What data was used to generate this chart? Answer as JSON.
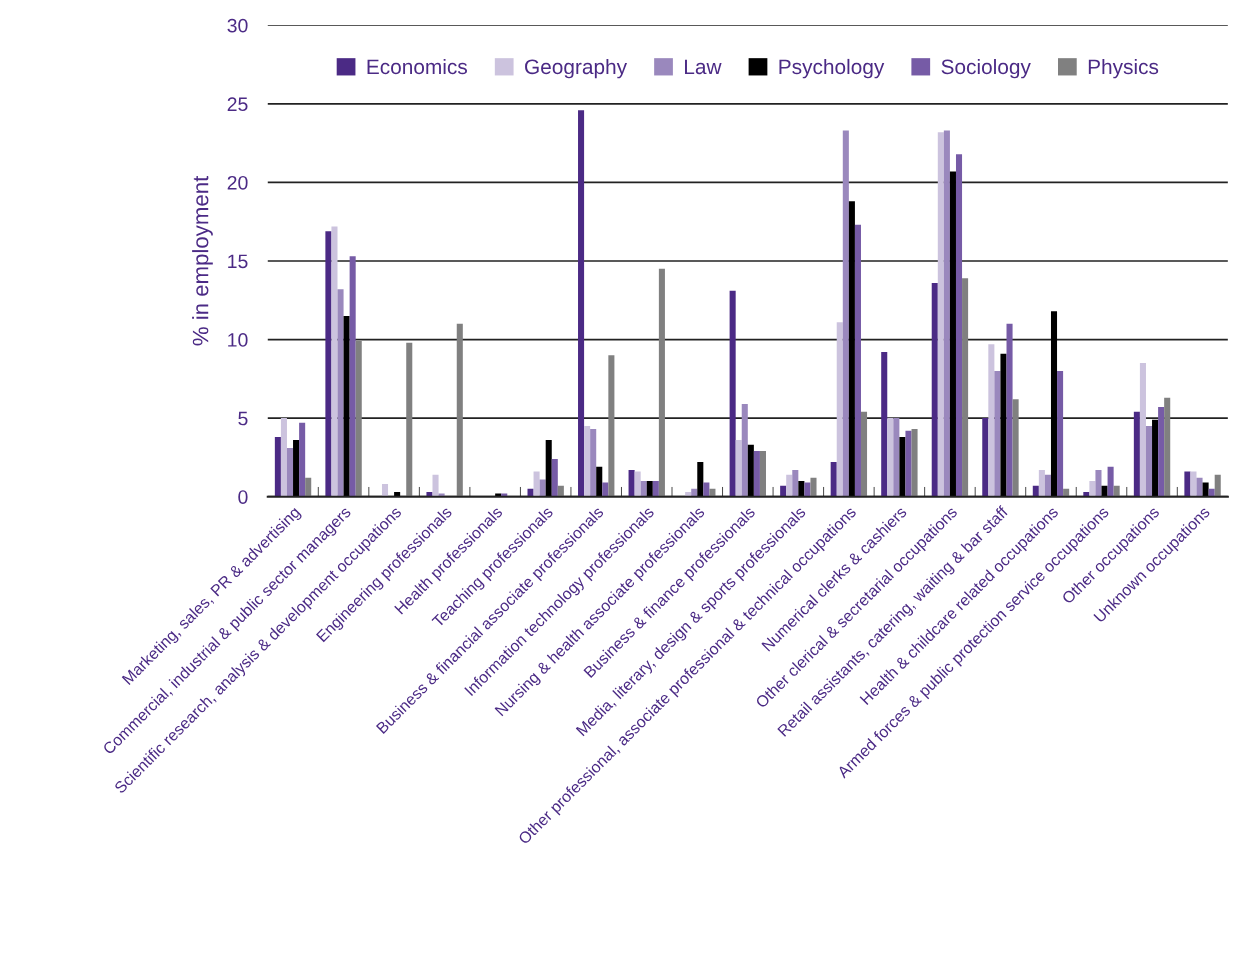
{
  "chart_data": {
    "type": "bar",
    "ylabel": "% in employment",
    "categories": [
      "Marketing, sales, PR & advertising",
      "Commercial, industrial & public sector managers",
      "Scientific research, analysis & development occupations",
      "Engineering professionals",
      "Health professionals",
      "Teaching professionals",
      "Business & financial associate professionals",
      "Information technology professionals",
      "Nursing & health associate professionals",
      "Business & finance professionals",
      "Media, literary, design & sports professionals",
      "Other professional, associate professional & technical occupations",
      "Numerical clerks & cashiers",
      "Other clerical & secretarial occupations",
      "Retail assistants, catering, waiting & bar staff",
      "Health & childcare related occupations",
      "Armed forces & public protection service occupations",
      "Other occupations",
      "Unknown occupations"
    ],
    "series": [
      {
        "name": "Economics",
        "color": "#4b2a85",
        "values": [
          3.8,
          16.9,
          0.0,
          0.3,
          0.0,
          0.5,
          24.6,
          1.7,
          0.0,
          13.1,
          0.7,
          2.2,
          9.2,
          13.6,
          5.0,
          0.7,
          0.3,
          5.4,
          1.6
        ]
      },
      {
        "name": "Geography",
        "color": "#ccc3de",
        "values": [
          5.0,
          17.2,
          0.8,
          1.4,
          0.0,
          1.6,
          4.5,
          1.6,
          0.3,
          3.6,
          1.4,
          11.1,
          5.0,
          23.2,
          9.7,
          1.7,
          1.0,
          8.5,
          1.6
        ]
      },
      {
        "name": "Law",
        "color": "#9a88bd",
        "values": [
          3.1,
          13.2,
          0.0,
          0.2,
          0.0,
          1.1,
          4.3,
          1.0,
          0.5,
          5.9,
          1.7,
          23.3,
          5.0,
          23.3,
          8.0,
          1.4,
          1.7,
          4.5,
          1.2
        ]
      },
      {
        "name": "Psychology",
        "color": "#000000",
        "values": [
          3.6,
          11.5,
          0.3,
          0.0,
          0.2,
          3.6,
          1.9,
          1.0,
          2.2,
          3.3,
          1.0,
          18.8,
          3.8,
          20.7,
          9.1,
          11.8,
          0.7,
          4.9,
          0.9
        ]
      },
      {
        "name": "Sociology",
        "color": "#765ba6",
        "values": [
          4.7,
          15.3,
          0.0,
          0.0,
          0.2,
          2.4,
          0.9,
          1.0,
          0.9,
          2.9,
          0.9,
          17.3,
          4.2,
          21.8,
          11.0,
          8.0,
          1.9,
          5.7,
          0.5
        ]
      },
      {
        "name": "Physics",
        "color": "#808080",
        "values": [
          1.2,
          9.9,
          9.8,
          11.0,
          0.0,
          0.7,
          9.0,
          14.5,
          0.5,
          2.9,
          1.2,
          5.4,
          4.3,
          13.9,
          6.2,
          0.5,
          0.7,
          6.3,
          1.4
        ]
      }
    ],
    "ylim": [
      0,
      30
    ],
    "yticks": [
      0,
      5,
      10,
      15,
      20,
      25,
      30
    ],
    "grid": "y",
    "legend": "top"
  }
}
